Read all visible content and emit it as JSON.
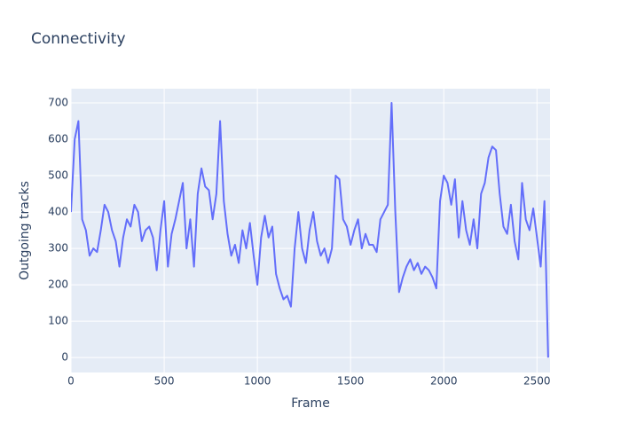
{
  "chart_data": {
    "type": "line",
    "title": "Connectivity",
    "x_label": "Frame",
    "y_label": "Outgoing tracks",
    "x": [
      0,
      20,
      40,
      60,
      80,
      100,
      120,
      140,
      160,
      180,
      200,
      220,
      240,
      260,
      280,
      300,
      320,
      340,
      360,
      380,
      400,
      420,
      440,
      460,
      480,
      500,
      520,
      540,
      560,
      580,
      600,
      620,
      640,
      660,
      680,
      700,
      720,
      740,
      760,
      780,
      800,
      820,
      840,
      860,
      880,
      900,
      920,
      940,
      960,
      980,
      1000,
      1020,
      1040,
      1060,
      1080,
      1100,
      1120,
      1140,
      1160,
      1180,
      1200,
      1220,
      1240,
      1260,
      1280,
      1300,
      1320,
      1340,
      1360,
      1380,
      1400,
      1420,
      1440,
      1460,
      1480,
      1500,
      1520,
      1540,
      1560,
      1580,
      1600,
      1620,
      1640,
      1660,
      1680,
      1700,
      1720,
      1740,
      1760,
      1780,
      1800,
      1820,
      1840,
      1860,
      1880,
      1900,
      1920,
      1940,
      1960,
      1980,
      2000,
      2020,
      2040,
      2060,
      2080,
      2100,
      2120,
      2140,
      2160,
      2180,
      2200,
      2220,
      2240,
      2260,
      2280,
      2300,
      2320,
      2340,
      2360,
      2380,
      2400,
      2420,
      2440,
      2460,
      2480,
      2500,
      2520,
      2540,
      2560
    ],
    "series": [
      {
        "name": "Outgoing tracks",
        "color": "#636efa",
        "values": [
          400,
          600,
          650,
          380,
          350,
          280,
          300,
          290,
          350,
          420,
          400,
          350,
          320,
          250,
          330,
          380,
          360,
          420,
          400,
          320,
          350,
          360,
          330,
          240,
          350,
          430,
          250,
          340,
          380,
          430,
          480,
          300,
          380,
          250,
          450,
          520,
          470,
          460,
          380,
          450,
          650,
          430,
          340,
          280,
          310,
          260,
          350,
          300,
          370,
          280,
          200,
          330,
          390,
          330,
          360,
          230,
          190,
          160,
          170,
          140,
          300,
          400,
          300,
          260,
          350,
          400,
          320,
          280,
          300,
          260,
          300,
          500,
          490,
          380,
          360,
          310,
          350,
          380,
          300,
          340,
          310,
          310,
          290,
          380,
          400,
          420,
          700,
          400,
          180,
          220,
          250,
          270,
          240,
          260,
          230,
          250,
          240,
          220,
          190,
          430,
          500,
          480,
          420,
          490,
          330,
          430,
          350,
          310,
          380,
          300,
          450,
          480,
          550,
          580,
          570,
          450,
          360,
          340,
          420,
          320,
          270,
          480,
          380,
          350,
          410,
          330,
          250,
          430,
          0
        ]
      }
    ],
    "xlim": [
      0,
      2570
    ],
    "ylim": [
      -41,
      739
    ],
    "xticks": [
      0,
      500,
      1000,
      1500,
      2000,
      2500
    ],
    "yticks": [
      0,
      100,
      200,
      300,
      400,
      500,
      600,
      700
    ],
    "grid": true
  }
}
